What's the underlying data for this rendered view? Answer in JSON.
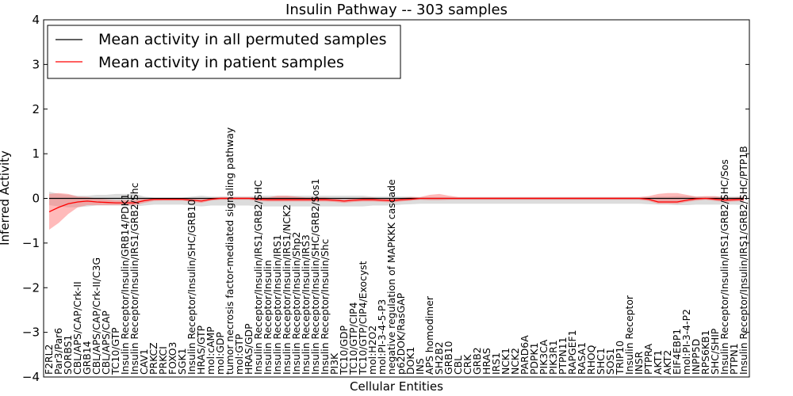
{
  "chart_data": {
    "type": "line",
    "title": "Insulin Pathway -- 303 samples",
    "xlabel": "Cellular Entities",
    "ylabel": "Inferred Activity",
    "ylim": [
      -4,
      4
    ],
    "yticks": [
      -4,
      -3,
      -2,
      -1,
      0,
      1,
      2,
      3,
      4
    ],
    "ytick_labels": [
      "−4",
      "−3",
      "−2",
      "−1",
      "0",
      "1",
      "2",
      "3",
      "4"
    ],
    "legend_position": "upper-left",
    "colors": {
      "permuted": "#000000",
      "patient": "#ff0000",
      "permuted_band": "#bfbfbf",
      "patient_band": "#ff6666"
    },
    "categories": [
      "F2RL2",
      "Par3/Par6",
      "SORBS1",
      "CBL/APS/CAP/Crk-II",
      "GRB14",
      "CBL/APS/CAP/Crk-II/C3G",
      "CBL/APS/CAP",
      "TC10/GTP",
      "Insulin Receptor/Insulin/GRB14/PDK1",
      "Insulin Receptor/Insulin/IRS1/GRB2/Shc",
      "CAV1",
      "PRKCZ",
      "PRKCI",
      "FOXO3",
      "SGK1",
      "Insulin Receptor/Insulin/SHC/GRB10",
      "HRAS/GTP",
      "mol:cAMP",
      "mol:GDP",
      "tumor necrosis factor-mediated signaling pathway",
      "mol:GTP",
      "HRAS/GDP",
      "Insulin Receptor/Insulin/IRS1/GRB2/SHC",
      "Insulin Receptor/Insulin",
      "Insulin Receptor/Insulin/IRS1",
      "Insulin Receptor/Insulin/IRS1/NCK2",
      "Insulin Receptor/Insulin/Shp2",
      "Insulin Receptor/Insulin/IRS3",
      "Insulin Receptor/Insulin/SHC/GRB2/Sos1",
      "Insulin Receptor/Insulin/Shc",
      "PI3K",
      "TC10/GDP",
      "TC10/GTP/CIP4",
      "TC10/GTP/CIP4/Exocyst",
      "mol:H2O2",
      "mol:PI-3-4-5-P3",
      "negative regulation of MAPKKK cascade",
      "p62DOK/RasGAP",
      "DOK1",
      "INS",
      "APS homodimer",
      "SH2B2",
      "GRB10",
      "CBL",
      "CRK",
      "GRB2",
      "HRAS",
      "IRS1",
      "NCK1",
      "NCK2",
      "PARD6A",
      "PDPK1",
      "PIK3CA",
      "PIK3R1",
      "PTPN11",
      "RAPGEF1",
      "RASA1",
      "RHOQ",
      "SHC1",
      "SOS1",
      "TRIP10",
      "Insulin Receptor",
      "INSR",
      "PTPRA",
      "AKT1",
      "AKT2",
      "EIF4EBP1",
      "mol:PI-3-4-P2",
      "INPP5D",
      "RPS6KB1",
      "SHC/SHIP",
      "Insulin Receptor/Insulin/IRS1/GRB2/SHC/Sos",
      "PTPN1",
      "Insulin Receptor/Insulin/IRS1/GRB2/SHC/PTP1B"
    ],
    "series": [
      {
        "name": "Mean activity in all permuted samples",
        "values": [
          0,
          0,
          0,
          0,
          0,
          0,
          0,
          0,
          0,
          0,
          0,
          0,
          0,
          0,
          0,
          0,
          0,
          0,
          0,
          0,
          0,
          0,
          0,
          0,
          0,
          0,
          0,
          0,
          0,
          0,
          0,
          0,
          0,
          0,
          0,
          0,
          0,
          0,
          0,
          0,
          0,
          0,
          0,
          0,
          0,
          0,
          0,
          0,
          0,
          0,
          0,
          0,
          0,
          0,
          0,
          0,
          0,
          0,
          0,
          0,
          0,
          0,
          0,
          0,
          0,
          0,
          0,
          0,
          0,
          0,
          0,
          0,
          0,
          0
        ],
        "band_low": [
          -0.15,
          -0.18,
          -0.2,
          -0.2,
          -0.18,
          -0.16,
          -0.16,
          -0.16,
          -0.16,
          -0.18,
          -0.16,
          -0.14,
          -0.14,
          -0.14,
          -0.14,
          -0.16,
          -0.18,
          -0.16,
          -0.16,
          -0.16,
          -0.16,
          -0.16,
          -0.18,
          -0.18,
          -0.18,
          -0.18,
          -0.18,
          -0.18,
          -0.18,
          -0.18,
          -0.18,
          -0.18,
          -0.18,
          -0.18,
          -0.16,
          -0.16,
          -0.16,
          -0.14,
          -0.13,
          -0.12,
          -0.12,
          -0.12,
          -0.12,
          -0.12,
          -0.12,
          -0.12,
          -0.12,
          -0.12,
          -0.12,
          -0.12,
          -0.12,
          -0.12,
          -0.12,
          -0.12,
          -0.12,
          -0.12,
          -0.12,
          -0.12,
          -0.12,
          -0.12,
          -0.12,
          -0.12,
          -0.12,
          -0.13,
          -0.14,
          -0.14,
          -0.15,
          -0.15,
          -0.14,
          -0.14,
          -0.14,
          -0.14,
          -0.14,
          -0.15
        ],
        "band_high": [
          0.15,
          0.1,
          0.08,
          0.06,
          0.06,
          0.08,
          0.08,
          0.1,
          0.1,
          0.1,
          0.04,
          0.02,
          0.02,
          0.02,
          0.02,
          0.04,
          0.06,
          0.04,
          0.04,
          0.04,
          0.04,
          0.04,
          0.06,
          0.06,
          0.06,
          0.06,
          0.06,
          0.06,
          0.06,
          0.06,
          0.06,
          0.06,
          0.06,
          0.06,
          0.04,
          0.04,
          0.04,
          0.04,
          0.04,
          0.02,
          0.02,
          0.02,
          0.02,
          0.02,
          0.02,
          0.02,
          0.02,
          0.02,
          0.02,
          0.02,
          0.02,
          0.02,
          0.02,
          0.02,
          0.02,
          0.02,
          0.02,
          0.02,
          0.02,
          0.02,
          0.02,
          0.02,
          0.02,
          0.02,
          0.04,
          0.04,
          0.05,
          0.05,
          0.04,
          0.04,
          0.04,
          0.04,
          0.04,
          0.05
        ]
      },
      {
        "name": "Mean activity in patient samples",
        "values": [
          -0.3,
          -0.2,
          -0.12,
          -0.08,
          -0.06,
          -0.08,
          -0.09,
          -0.1,
          -0.1,
          -0.1,
          -0.05,
          -0.02,
          -0.02,
          -0.02,
          -0.02,
          -0.04,
          -0.06,
          -0.02,
          0,
          0,
          0,
          0,
          -0.02,
          -0.03,
          -0.03,
          -0.03,
          -0.03,
          -0.03,
          -0.03,
          -0.03,
          -0.04,
          -0.06,
          -0.04,
          -0.03,
          -0.03,
          -0.04,
          -0.05,
          -0.03,
          -0.02,
          0,
          0,
          0,
          0,
          0,
          0,
          0,
          0,
          0,
          0,
          0,
          0,
          0,
          0,
          0,
          0,
          0,
          0,
          0,
          0,
          0,
          0,
          0,
          0,
          -0.02,
          -0.08,
          -0.08,
          -0.08,
          -0.04,
          -0.01,
          0,
          -0.02,
          -0.04,
          -0.03,
          -0.02
        ],
        "band_low": [
          -0.7,
          -0.55,
          -0.35,
          -0.2,
          -0.15,
          -0.15,
          -0.15,
          -0.15,
          -0.15,
          -0.15,
          -0.1,
          -0.06,
          -0.05,
          -0.05,
          -0.05,
          -0.08,
          -0.1,
          -0.05,
          -0.03,
          -0.03,
          -0.03,
          -0.03,
          -0.06,
          -0.07,
          -0.07,
          -0.07,
          -0.07,
          -0.07,
          -0.07,
          -0.07,
          -0.08,
          -0.1,
          -0.08,
          -0.07,
          -0.07,
          -0.08,
          -0.09,
          -0.07,
          -0.05,
          -0.03,
          -0.04,
          -0.04,
          -0.03,
          -0.03,
          -0.03,
          -0.03,
          -0.03,
          -0.03,
          -0.03,
          -0.03,
          -0.03,
          -0.03,
          -0.03,
          -0.03,
          -0.03,
          -0.03,
          -0.03,
          -0.03,
          -0.03,
          -0.03,
          -0.03,
          -0.03,
          -0.03,
          -0.06,
          -0.12,
          -0.12,
          -0.12,
          -0.08,
          -0.05,
          -0.03,
          -0.06,
          -0.08,
          -0.07,
          -0.06
        ],
        "band_high": [
          0.1,
          0.12,
          0.1,
          0.04,
          0.03,
          0,
          -0.02,
          -0.04,
          -0.04,
          -0.04,
          0,
          0.01,
          0.01,
          0.01,
          0.01,
          0,
          -0.01,
          0.01,
          0.03,
          0.03,
          0.03,
          0.03,
          0.02,
          0.02,
          0.06,
          0.06,
          0.04,
          0.02,
          0.02,
          0.02,
          0,
          -0.02,
          0,
          0.02,
          0.02,
          0,
          0,
          0.01,
          0.03,
          0.03,
          0.08,
          0.1,
          0.06,
          0.03,
          0.03,
          0.03,
          0.03,
          0.03,
          0.03,
          0.03,
          0.03,
          0.03,
          0.03,
          0.03,
          0.03,
          0.03,
          0.03,
          0.03,
          0.03,
          0.03,
          0.03,
          0.03,
          0.03,
          0.05,
          0.1,
          0.12,
          0.12,
          0.08,
          0.04,
          0.05,
          0.05,
          0.02,
          0.02,
          0.03
        ]
      }
    ]
  }
}
